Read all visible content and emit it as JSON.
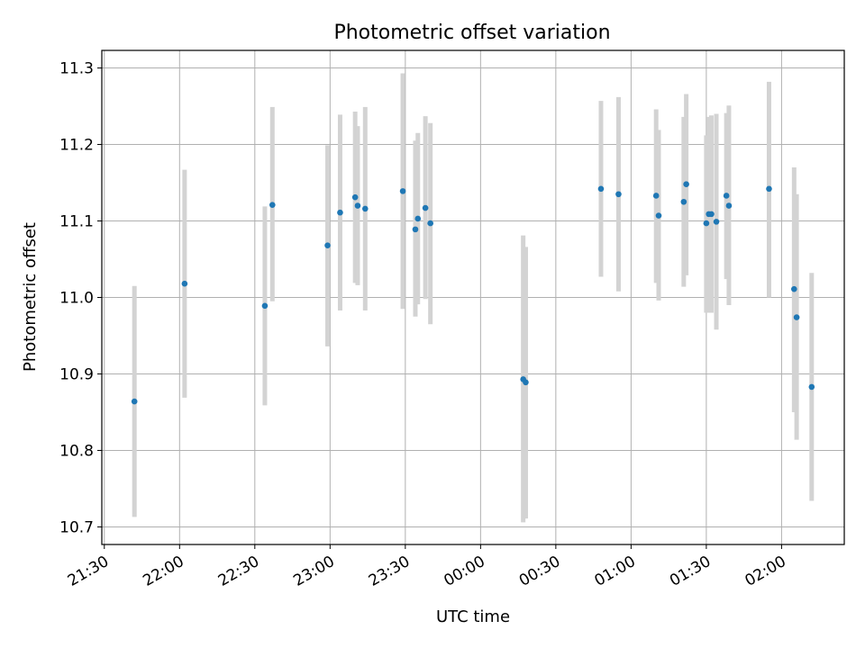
{
  "chart_data": {
    "type": "scatter",
    "title": "Photometric offset variation",
    "xlabel": "UTC time",
    "ylabel": "Photometric offset",
    "xlim": [
      "2024-01-01T21:29",
      "2024-01-02T02:25"
    ],
    "ylim": [
      10.677,
      11.323
    ],
    "x_ticks": [
      "21:30",
      "22:00",
      "22:30",
      "23:00",
      "23:30",
      "00:00",
      "00:30",
      "01:00",
      "01:30",
      "02:00"
    ],
    "y_ticks": [
      "10.7",
      "10.8",
      "10.9",
      "11.0",
      "11.1",
      "11.2",
      "11.3"
    ],
    "grid": true,
    "point_color": "#1f77b4",
    "errorbar_color": "#d3d3d3",
    "points": [
      {
        "t": "21:42",
        "y": 10.864,
        "lo": 10.713,
        "hi": 11.015
      },
      {
        "t": "22:02",
        "y": 11.018,
        "lo": 10.869,
        "hi": 11.167
      },
      {
        "t": "22:34",
        "y": 10.989,
        "lo": 10.859,
        "hi": 11.119
      },
      {
        "t": "22:37",
        "y": 11.121,
        "lo": 10.995,
        "hi": 11.249
      },
      {
        "t": "22:59",
        "y": 11.068,
        "lo": 10.936,
        "hi": 11.199
      },
      {
        "t": "23:04",
        "y": 11.111,
        "lo": 10.983,
        "hi": 11.239
      },
      {
        "t": "23:10",
        "y": 11.131,
        "lo": 11.019,
        "hi": 11.243
      },
      {
        "t": "23:11",
        "y": 11.12,
        "lo": 11.016,
        "hi": 11.224
      },
      {
        "t": "23:14",
        "y": 11.116,
        "lo": 10.983,
        "hi": 11.249
      },
      {
        "t": "23:29",
        "y": 11.139,
        "lo": 10.985,
        "hi": 11.293
      },
      {
        "t": "23:34",
        "y": 11.089,
        "lo": 10.975,
        "hi": 11.205
      },
      {
        "t": "23:35",
        "y": 11.103,
        "lo": 10.991,
        "hi": 11.215
      },
      {
        "t": "23:38",
        "y": 11.117,
        "lo": 10.998,
        "hi": 11.237
      },
      {
        "t": "23:40",
        "y": 11.097,
        "lo": 10.965,
        "hi": 11.228
      },
      {
        "t": "00:17",
        "y": 10.893,
        "lo": 10.706,
        "hi": 11.081
      },
      {
        "t": "00:18",
        "y": 10.889,
        "lo": 10.711,
        "hi": 11.066
      },
      {
        "t": "00:48",
        "y": 11.142,
        "lo": 11.027,
        "hi": 11.257
      },
      {
        "t": "00:55",
        "y": 11.135,
        "lo": 11.008,
        "hi": 11.262
      },
      {
        "t": "01:10",
        "y": 11.133,
        "lo": 11.019,
        "hi": 11.246
      },
      {
        "t": "01:11",
        "y": 11.107,
        "lo": 10.996,
        "hi": 11.219
      },
      {
        "t": "01:21",
        "y": 11.125,
        "lo": 11.014,
        "hi": 11.236
      },
      {
        "t": "01:22",
        "y": 11.148,
        "lo": 11.029,
        "hi": 11.266
      },
      {
        "t": "01:30",
        "y": 11.097,
        "lo": 10.98,
        "hi": 11.212
      },
      {
        "t": "01:31",
        "y": 11.109,
        "lo": 10.98,
        "hi": 11.236
      },
      {
        "t": "01:32",
        "y": 11.109,
        "lo": 10.98,
        "hi": 11.238
      },
      {
        "t": "01:34",
        "y": 11.099,
        "lo": 10.958,
        "hi": 11.24
      },
      {
        "t": "01:38",
        "y": 11.133,
        "lo": 11.024,
        "hi": 11.241
      },
      {
        "t": "01:39",
        "y": 11.12,
        "lo": 10.99,
        "hi": 11.251
      },
      {
        "t": "01:55",
        "y": 11.142,
        "lo": 11.0,
        "hi": 11.282
      },
      {
        "t": "02:05",
        "y": 11.011,
        "lo": 10.85,
        "hi": 11.17
      },
      {
        "t": "02:06",
        "y": 10.974,
        "lo": 10.814,
        "hi": 11.135
      },
      {
        "t": "02:12",
        "y": 10.883,
        "lo": 10.734,
        "hi": 11.032
      }
    ]
  }
}
